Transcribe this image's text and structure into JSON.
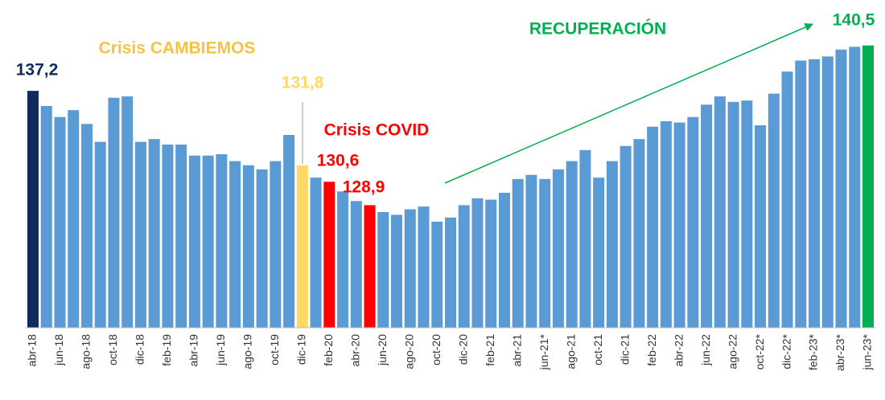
{
  "chart_data": {
    "type": "bar",
    "categories": [
      "abr-18",
      null,
      "jun-18",
      null,
      "ago-18",
      null,
      "oct-18",
      null,
      "dic-18",
      null,
      "feb-19",
      null,
      "abr-19",
      null,
      "jun-19",
      null,
      "ago-19",
      null,
      "oct-19",
      null,
      "dic-19",
      null,
      "feb-20",
      null,
      "abr-20",
      null,
      "jun-20",
      null,
      "ago-20",
      null,
      "oct-20",
      null,
      "dic-20",
      null,
      "feb-21",
      null,
      "abr-21",
      null,
      "jun-21*",
      null,
      "ago-21",
      null,
      "oct-21",
      null,
      "dic-21",
      null,
      "feb-22",
      null,
      "abr-22",
      null,
      "jun-22",
      null,
      "ago-22",
      null,
      "oct-22*",
      null,
      "dic-22*",
      null,
      "feb-23*",
      null,
      "abr-23*",
      null,
      "jun-23*"
    ],
    "values": [
      137.2,
      136.1,
      135.3,
      135.8,
      134.8,
      133.5,
      136.7,
      136.8,
      133.5,
      133.7,
      133.3,
      133.3,
      132.5,
      132.5,
      132.6,
      132.1,
      131.8,
      131.5,
      132.1,
      134.0,
      131.8,
      130.9,
      130.6,
      129.9,
      129.2,
      128.9,
      128.4,
      128.2,
      128.6,
      128.8,
      127.7,
      128.0,
      128.9,
      129.4,
      129.3,
      129.8,
      130.8,
      131.1,
      130.8,
      131.5,
      132.1,
      132.9,
      130.9,
      132.1,
      133.2,
      133.7,
      134.6,
      135.0,
      134.9,
      135.3,
      136.2,
      136.8,
      136.4,
      136.5,
      134.7,
      137.0,
      138.6,
      139.4,
      139.5,
      139.7,
      140.2,
      140.4,
      140.5
    ],
    "value_labels": [
      "137,2",
      null,
      null,
      null,
      null,
      null,
      null,
      null,
      null,
      null,
      null,
      null,
      null,
      null,
      null,
      null,
      null,
      null,
      null,
      null,
      "131,8",
      null,
      "130,6",
      null,
      null,
      "128,9",
      null,
      null,
      null,
      null,
      null,
      null,
      null,
      null,
      null,
      null,
      null,
      null,
      null,
      null,
      null,
      null,
      null,
      null,
      null,
      null,
      null,
      null,
      null,
      null,
      null,
      null,
      null,
      null,
      null,
      null,
      null,
      null,
      null,
      null,
      null,
      null,
      "140,5"
    ],
    "colors": [
      "#0e2a5e",
      "#5b9bd5",
      "#5b9bd5",
      "#5b9bd5",
      "#5b9bd5",
      "#5b9bd5",
      "#5b9bd5",
      "#5b9bd5",
      "#5b9bd5",
      "#5b9bd5",
      "#5b9bd5",
      "#5b9bd5",
      "#5b9bd5",
      "#5b9bd5",
      "#5b9bd5",
      "#5b9bd5",
      "#5b9bd5",
      "#5b9bd5",
      "#5b9bd5",
      "#5b9bd5",
      "#ffd966",
      "#5b9bd5",
      "#ff0000",
      "#5b9bd5",
      "#5b9bd5",
      "#ff0000",
      "#5b9bd5",
      "#5b9bd5",
      "#5b9bd5",
      "#5b9bd5",
      "#5b9bd5",
      "#5b9bd5",
      "#5b9bd5",
      "#5b9bd5",
      "#5b9bd5",
      "#5b9bd5",
      "#5b9bd5",
      "#5b9bd5",
      "#5b9bd5",
      "#5b9bd5",
      "#5b9bd5",
      "#5b9bd5",
      "#5b9bd5",
      "#5b9bd5",
      "#5b9bd5",
      "#5b9bd5",
      "#5b9bd5",
      "#5b9bd5",
      "#5b9bd5",
      "#5b9bd5",
      "#5b9bd5",
      "#5b9bd5",
      "#5b9bd5",
      "#5b9bd5",
      "#5b9bd5",
      "#5b9bd5",
      "#5b9bd5",
      "#5b9bd5",
      "#5b9bd5",
      "#5b9bd5",
      "#5b9bd5",
      "#5b9bd5",
      "#00b050"
    ],
    "ylim": [
      120,
      141
    ],
    "annotations": [
      {
        "text": "Crisis CAMBIEMOS",
        "color": "#f5c342"
      },
      {
        "text": "Crisis COVID",
        "color": "#ff0000"
      },
      {
        "text": "RECUPERACIÓN",
        "color": "#00b050"
      }
    ]
  }
}
